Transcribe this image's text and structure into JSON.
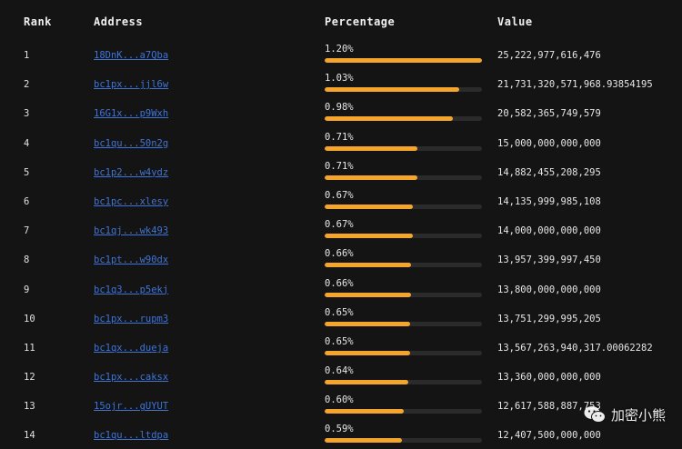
{
  "header": {
    "rank": "Rank",
    "address": "Address",
    "percentage": "Percentage",
    "value": "Value"
  },
  "rows": [
    {
      "rank": "1",
      "address": "18DnK...a7Qba",
      "percentage": "1.20%",
      "fill": 1.0,
      "value": "25,222,977,616,476"
    },
    {
      "rank": "2",
      "address": "bc1px...jjl6w",
      "percentage": "1.03%",
      "fill": 0.858,
      "value": "21,731,320,571,968.93854195"
    },
    {
      "rank": "3",
      "address": "16G1x...p9Wxh",
      "percentage": "0.98%",
      "fill": 0.817,
      "value": "20,582,365,749,579"
    },
    {
      "rank": "4",
      "address": "bc1qu...50n2g",
      "percentage": "0.71%",
      "fill": 0.592,
      "value": "15,000,000,000,000"
    },
    {
      "rank": "5",
      "address": "bc1p2...w4ydz",
      "percentage": "0.71%",
      "fill": 0.592,
      "value": "14,882,455,208,295"
    },
    {
      "rank": "6",
      "address": "bc1pc...xlesy",
      "percentage": "0.67%",
      "fill": 0.558,
      "value": "14,135,999,985,108"
    },
    {
      "rank": "7",
      "address": "bc1qj...wk493",
      "percentage": "0.67%",
      "fill": 0.558,
      "value": "14,000,000,000,000"
    },
    {
      "rank": "8",
      "address": "bc1pt...w90dx",
      "percentage": "0.66%",
      "fill": 0.55,
      "value": "13,957,399,997,450"
    },
    {
      "rank": "9",
      "address": "bc1q3...p5ekj",
      "percentage": "0.66%",
      "fill": 0.55,
      "value": "13,800,000,000,000"
    },
    {
      "rank": "10",
      "address": "bc1px...rupm3",
      "percentage": "0.65%",
      "fill": 0.542,
      "value": "13,751,299,995,205"
    },
    {
      "rank": "11",
      "address": "bc1qx...dueja",
      "percentage": "0.65%",
      "fill": 0.542,
      "value": "13,567,263,940,317.00062282"
    },
    {
      "rank": "12",
      "address": "bc1px...caksx",
      "percentage": "0.64%",
      "fill": 0.533,
      "value": "13,360,000,000,000"
    },
    {
      "rank": "13",
      "address": "15ojr...gUYUT",
      "percentage": "0.60%",
      "fill": 0.5,
      "value": "12,617,588,887,753"
    },
    {
      "rank": "14",
      "address": "bc1qu...ltdpa",
      "percentage": "0.59%",
      "fill": 0.492,
      "value": "12,407,500,000,000"
    }
  ],
  "watermark": {
    "text": "加密小熊",
    "icon": "wechat-icon"
  },
  "colors": {
    "background": "#141414",
    "bar_fill": "#f3a62b",
    "bar_track": "#2b2b2b",
    "link": "#3f74d6"
  }
}
